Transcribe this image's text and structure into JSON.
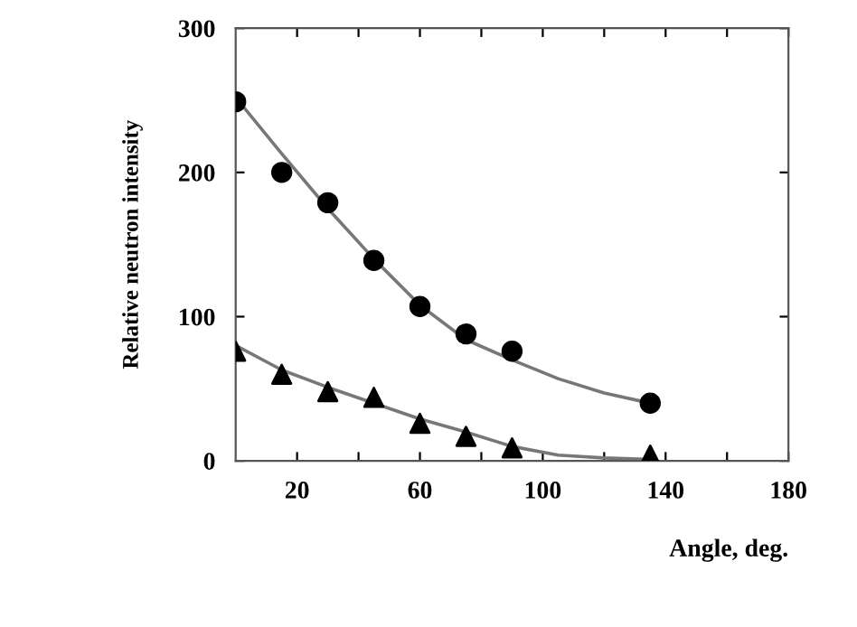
{
  "chart_data": {
    "type": "scatter",
    "xlabel": "Angle, deg.",
    "ylabel": "Relative neutron intensity",
    "xlim": [
      0,
      180
    ],
    "ylim": [
      0,
      300
    ],
    "xticks": [
      20,
      {
        "value": 40,
        "label": null
      },
      60,
      {
        "value": 80,
        "label": null
      },
      100,
      {
        "value": 120,
        "label": null
      },
      140,
      {
        "value": 160,
        "label": null
      },
      180
    ],
    "yticks": [
      0,
      100,
      200,
      300
    ],
    "grid": false,
    "legend": false,
    "series": [
      {
        "marker": "circle",
        "color": "#000000",
        "x": [
          0,
          15,
          30,
          45,
          60,
          75,
          90,
          135
        ],
        "values": [
          249,
          200,
          179,
          139,
          107,
          88,
          76,
          40
        ]
      },
      {
        "marker": "triangle",
        "color": "#000000",
        "x": [
          0,
          15,
          30,
          45,
          60,
          75,
          90,
          135
        ],
        "values": [
          76,
          60,
          48,
          44,
          26,
          17,
          9,
          4
        ]
      },
      {
        "type": "line",
        "marker": "none",
        "line_style": "solid",
        "color": "#777777",
        "x": [
          0,
          15,
          30,
          45,
          60,
          75,
          90,
          105,
          120,
          135
        ],
        "values": [
          252,
          213,
          175,
          140,
          108,
          84,
          70,
          57,
          47,
          40
        ]
      },
      {
        "type": "line",
        "marker": "none",
        "line_style": "solid",
        "color": "#777777",
        "x": [
          0,
          15,
          30,
          45,
          60,
          75,
          90,
          105,
          120,
          135
        ],
        "values": [
          80,
          63,
          51,
          40,
          29,
          20,
          10,
          4,
          2,
          1
        ]
      }
    ]
  }
}
